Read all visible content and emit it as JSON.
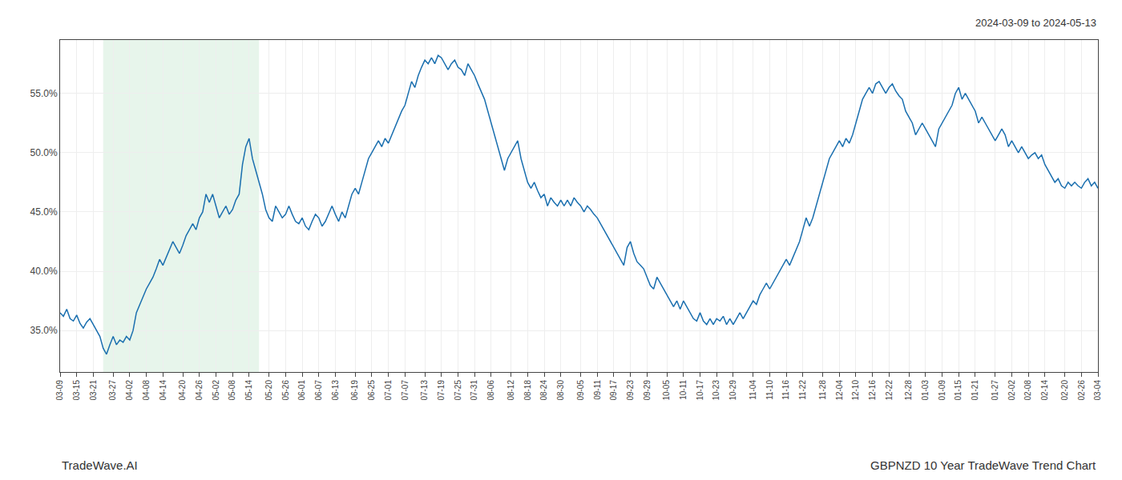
{
  "chart_data": {
    "type": "line",
    "annotations": [
      "2024-03-09 to 2024-05-13",
      "TradeWave.AI",
      "GBPNZD 10 Year TradeWave Trend Chart"
    ],
    "color": "#1a6faf",
    "grid": true,
    "ylim": [
      31.5,
      59.5
    ],
    "yticks": [
      {
        "value": 35.0,
        "label": "35.0%"
      },
      {
        "value": 40.0,
        "label": "40.0%"
      },
      {
        "value": 45.0,
        "label": "45.0%"
      },
      {
        "value": 50.0,
        "label": "50.0%"
      },
      {
        "value": 55.0,
        "label": "55.0%"
      }
    ],
    "highlight": {
      "start": "03-27",
      "end": "05-14",
      "color": "#d4edda"
    },
    "categories": [
      "03-09",
      null,
      null,
      null,
      null,
      "03-15",
      null,
      null,
      null,
      null,
      "03-21",
      null,
      null,
      null,
      null,
      null,
      "03-27",
      null,
      null,
      null,
      null,
      "04-02",
      null,
      null,
      null,
      null,
      "04-08",
      null,
      null,
      null,
      null,
      "04-14",
      null,
      null,
      null,
      null,
      null,
      "04-20",
      null,
      null,
      null,
      null,
      "04-26",
      null,
      null,
      null,
      null,
      "05-02",
      null,
      null,
      null,
      null,
      "05-08",
      null,
      null,
      null,
      null,
      "05-14",
      null,
      null,
      null,
      null,
      null,
      "05-20",
      null,
      null,
      null,
      null,
      "05-26",
      null,
      null,
      null,
      null,
      "06-01",
      null,
      null,
      null,
      null,
      "06-07",
      null,
      null,
      null,
      null,
      "06-13",
      null,
      null,
      null,
      null,
      null,
      "06-19",
      null,
      null,
      null,
      null,
      "06-25",
      null,
      null,
      null,
      null,
      "07-01",
      null,
      null,
      null,
      null,
      "07-07",
      null,
      null,
      null,
      null,
      null,
      "07-13",
      null,
      null,
      null,
      null,
      "07-19",
      null,
      null,
      null,
      null,
      "07-25",
      null,
      null,
      null,
      null,
      "07-31",
      null,
      null,
      null,
      null,
      "08-06",
      null,
      null,
      null,
      null,
      null,
      "08-12",
      null,
      null,
      null,
      null,
      "08-18",
      null,
      null,
      null,
      null,
      "08-24",
      null,
      null,
      null,
      null,
      "08-30",
      null,
      null,
      null,
      null,
      null,
      "09-05",
      null,
      null,
      null,
      null,
      "09-11",
      null,
      null,
      null,
      null,
      "09-17",
      null,
      null,
      null,
      null,
      "09-23",
      null,
      null,
      null,
      null,
      "09-29",
      null,
      null,
      null,
      null,
      null,
      "10-05",
      null,
      null,
      null,
      null,
      "10-11",
      null,
      null,
      null,
      null,
      "10-17",
      null,
      null,
      null,
      null,
      "10-23",
      null,
      null,
      null,
      null,
      "10-29",
      null,
      null,
      null,
      null,
      null,
      "11-04",
      null,
      null,
      null,
      null,
      "11-10",
      null,
      null,
      null,
      null,
      "11-16",
      null,
      null,
      null,
      null,
      "11-22",
      null,
      null,
      null,
      null,
      null,
      "11-28",
      null,
      null,
      null,
      null,
      "12-04",
      null,
      null,
      null,
      null,
      "12-10",
      null,
      null,
      null,
      null,
      "12-16",
      null,
      null,
      null,
      null,
      "12-22",
      null,
      null,
      null,
      null,
      null,
      "12-28",
      null,
      null,
      null,
      null,
      "01-03",
      null,
      null,
      null,
      null,
      "01-09",
      null,
      null,
      null,
      null,
      "01-15",
      null,
      null,
      null,
      null,
      "01-21",
      null,
      null,
      null,
      null,
      null,
      "01-27",
      null,
      null,
      null,
      null,
      "02-02",
      null,
      null,
      null,
      null,
      "02-08",
      null,
      null,
      null,
      null,
      "02-14",
      null,
      null,
      null,
      null,
      null,
      "02-20",
      null,
      null,
      null,
      null,
      "02-26",
      null,
      null,
      null,
      null,
      "03-04"
    ],
    "values": [
      36.5,
      36.2,
      36.8,
      36.0,
      35.8,
      36.3,
      35.6,
      35.2,
      35.7,
      36.0,
      35.5,
      35.0,
      34.5,
      33.5,
      33.0,
      33.8,
      34.5,
      33.8,
      34.2,
      34.0,
      34.5,
      34.2,
      35.0,
      36.5,
      37.2,
      37.8,
      38.5,
      39.0,
      39.5,
      40.2,
      41.0,
      40.5,
      41.2,
      41.8,
      42.5,
      42.0,
      41.5,
      42.2,
      43.0,
      43.5,
      44.0,
      43.5,
      44.5,
      45.0,
      46.5,
      45.8,
      46.5,
      45.5,
      44.5,
      45.0,
      45.5,
      44.8,
      45.2,
      46.0,
      46.5,
      49.0,
      50.5,
      51.2,
      49.5,
      48.5,
      47.5,
      46.5,
      45.2,
      44.5,
      44.2,
      45.5,
      45.0,
      44.5,
      44.8,
      45.5,
      44.8,
      44.2,
      44.0,
      44.5,
      43.8,
      43.5,
      44.2,
      44.8,
      44.5,
      43.8,
      44.2,
      44.8,
      45.5,
      44.8,
      44.2,
      45.0,
      44.5,
      45.5,
      46.5,
      47.0,
      46.5,
      47.5,
      48.5,
      49.5,
      50.0,
      50.5,
      51.0,
      50.5,
      51.2,
      50.8,
      51.5,
      52.2,
      52.8,
      53.5,
      54.0,
      55.0,
      56.0,
      55.5,
      56.5,
      57.2,
      57.8,
      57.5,
      58.0,
      57.5,
      58.2,
      58.0,
      57.5,
      57.0,
      57.5,
      57.8,
      57.2,
      57.0,
      56.5,
      57.5,
      57.0,
      56.5,
      55.8,
      55.2,
      54.5,
      53.5,
      52.5,
      51.5,
      50.5,
      49.5,
      48.5,
      49.5,
      50.0,
      50.5,
      51.0,
      49.5,
      48.5,
      47.5,
      47.0,
      47.5,
      46.8,
      46.2,
      46.5,
      45.5,
      46.2,
      45.8,
      45.5,
      46.0,
      45.5,
      46.0,
      45.5,
      46.2,
      45.8,
      45.5,
      45.0,
      45.5,
      45.2,
      44.8,
      44.5,
      44.0,
      43.5,
      43.0,
      42.5,
      42.0,
      41.5,
      41.0,
      40.5,
      42.0,
      42.5,
      41.5,
      40.8,
      40.5,
      40.2,
      39.5,
      38.8,
      38.5,
      39.5,
      39.0,
      38.5,
      38.0,
      37.5,
      37.0,
      37.5,
      36.8,
      37.5,
      37.0,
      36.5,
      36.0,
      35.8,
      36.5,
      35.8,
      35.5,
      36.0,
      35.5,
      36.0,
      35.8,
      36.2,
      35.5,
      36.0,
      35.5,
      36.0,
      36.5,
      36.0,
      36.5,
      37.0,
      37.5,
      37.2,
      38.0,
      38.5,
      39.0,
      38.5,
      39.0,
      39.5,
      40.0,
      40.5,
      41.0,
      40.5,
      41.2,
      41.8,
      42.5,
      43.5,
      44.5,
      43.8,
      44.5,
      45.5,
      46.5,
      47.5,
      48.5,
      49.5,
      50.0,
      50.5,
      51.0,
      50.5,
      51.2,
      50.8,
      51.5,
      52.5,
      53.5,
      54.5,
      55.0,
      55.5,
      55.0,
      55.8,
      56.0,
      55.5,
      55.0,
      55.5,
      55.8,
      55.2,
      54.8,
      54.5,
      53.5,
      53.0,
      52.5,
      51.5,
      52.0,
      52.5,
      52.0,
      51.5,
      51.0,
      50.5,
      52.0,
      52.5,
      53.0,
      53.5,
      54.0,
      55.0,
      55.5,
      54.5,
      55.0,
      54.5,
      54.0,
      53.5,
      52.5,
      53.0,
      52.5,
      52.0,
      51.5,
      51.0,
      51.5,
      52.0,
      51.5,
      50.5,
      51.0,
      50.5,
      50.0,
      50.5,
      50.0,
      49.5,
      49.8,
      50.0,
      49.5,
      49.8,
      49.0,
      48.5,
      48.0,
      47.5,
      47.8,
      47.2,
      47.0,
      47.5,
      47.2,
      47.5,
      47.2,
      47.0,
      47.5,
      47.8,
      47.2,
      47.5,
      47.0
    ]
  }
}
